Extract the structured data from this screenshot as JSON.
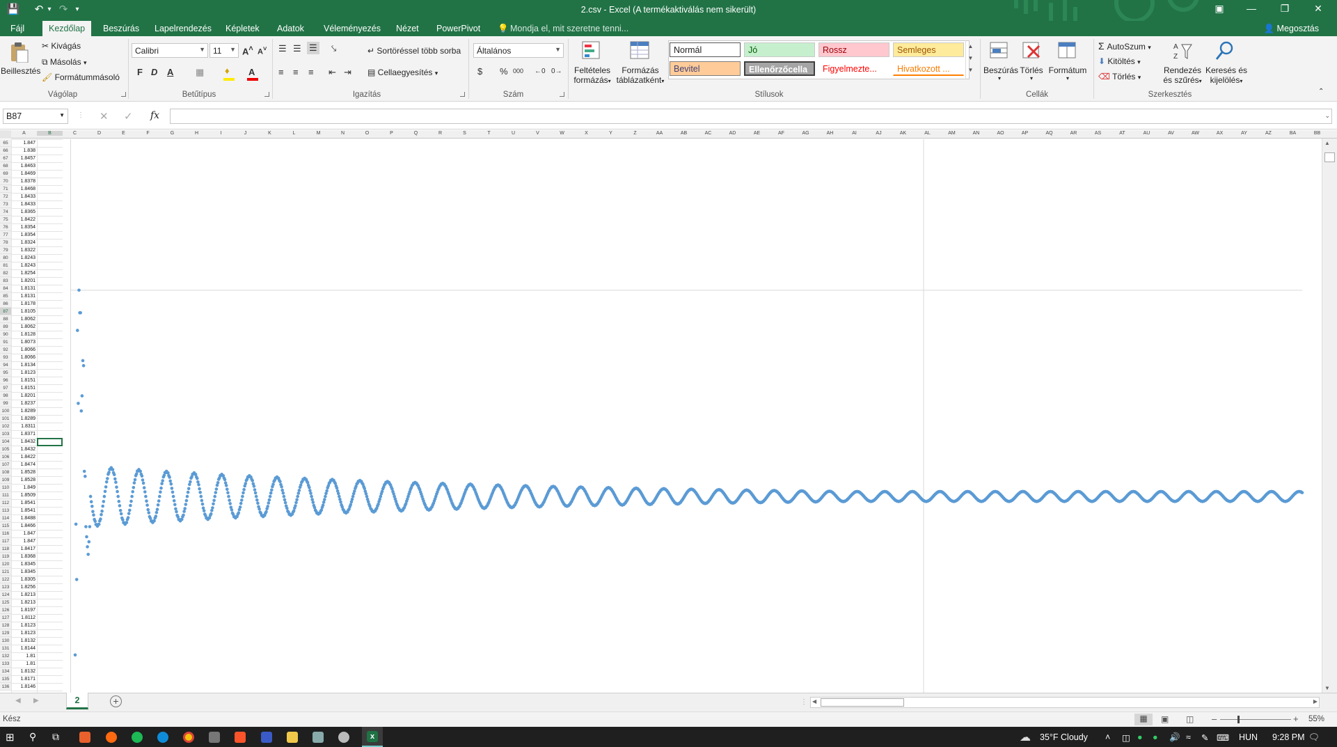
{
  "window": {
    "title": "2.csv - Excel (A termékaktiválás nem sikerült)",
    "share_label": "Megosztás",
    "tell_me": "Mondja el, mit szeretne tenni..."
  },
  "tabs": [
    "Fájl",
    "Kezdőlap",
    "Beszúrás",
    "Lapelrendezés",
    "Képletek",
    "Adatok",
    "Véleményezés",
    "Nézet",
    "PowerPivot"
  ],
  "active_tab": "Kezdőlap",
  "ribbon": {
    "clipboard": {
      "paste": "Beillesztés",
      "cut": "Kivágás",
      "copy": "Másolás",
      "format_painter": "Formátummásoló",
      "group": "Vágólap"
    },
    "font": {
      "name": "Calibri",
      "size": "11",
      "bold": "F",
      "italic": "D",
      "underline": "A",
      "group": "Betűtípus"
    },
    "alignment": {
      "wrap": "Sortöréssel több sorba",
      "merge": "Cellaegyesítés",
      "group": "Igazítás"
    },
    "number": {
      "format": "Általános",
      "currency": "$",
      "percent": "%",
      "thousands": "000",
      "group": "Szám"
    },
    "styles": {
      "conditional_1": "Feltételes",
      "conditional_2": "formázás",
      "table_1": "Formázás",
      "table_2": "táblázatként",
      "normal": "Normál",
      "good": "Jó",
      "bad": "Rossz",
      "neutral": "Semleges",
      "input": "Bevitel",
      "check": "Ellenőrzőcella",
      "warning": "Figyelmezte...",
      "linked": "Hivatkozott ...",
      "group": "Stílusok"
    },
    "cells": {
      "insert": "Beszúrás",
      "delete": "Törlés",
      "format": "Formátum",
      "group": "Cellák"
    },
    "editing": {
      "autosum": "AutoSzum",
      "fill": "Kitöltés",
      "clear": "Törlés",
      "sort_1": "Rendezés",
      "sort_2": "és szűrés",
      "find_1": "Keresés és",
      "find_2": "kijelölés",
      "group": "Szerkesztés"
    }
  },
  "formula_bar": {
    "name_box": "B87",
    "formula": "",
    "fx": "fx"
  },
  "column_headers": [
    "A",
    "B",
    "C",
    "D",
    "E",
    "F",
    "G",
    "H",
    "I",
    "J",
    "K",
    "L",
    "M",
    "N",
    "O",
    "P",
    "Q",
    "R",
    "S",
    "T",
    "U",
    "V",
    "W",
    "X",
    "Y",
    "Z",
    "AA",
    "AB",
    "AC",
    "AD",
    "AE",
    "AF",
    "AG",
    "AH",
    "AI",
    "AJ",
    "AK",
    "AL",
    "AM",
    "AN",
    "AO",
    "AP",
    "AQ",
    "AR",
    "AS",
    "AT",
    "AU",
    "AV",
    "AW",
    "AX",
    "AY",
    "AZ",
    "BA",
    "BB"
  ],
  "rows": [
    {
      "n": "65",
      "v": "1.847"
    },
    {
      "n": "66",
      "v": "1.838"
    },
    {
      "n": "67",
      "v": "1.8457"
    },
    {
      "n": "68",
      "v": "1.8463"
    },
    {
      "n": "69",
      "v": "1.8469"
    },
    {
      "n": "70",
      "v": "1.8378"
    },
    {
      "n": "71",
      "v": "1.8468"
    },
    {
      "n": "72",
      "v": "1.8433"
    },
    {
      "n": "73",
      "v": "1.8433"
    },
    {
      "n": "74",
      "v": "1.8365"
    },
    {
      "n": "75",
      "v": "1.8422"
    },
    {
      "n": "76",
      "v": "1.8354"
    },
    {
      "n": "77",
      "v": "1.8354"
    },
    {
      "n": "78",
      "v": "1.8324"
    },
    {
      "n": "79",
      "v": "1.8322"
    },
    {
      "n": "80",
      "v": "1.8243"
    },
    {
      "n": "81",
      "v": "1.8243"
    },
    {
      "n": "82",
      "v": "1.8254"
    },
    {
      "n": "83",
      "v": "1.8201"
    },
    {
      "n": "84",
      "v": "1.8131"
    },
    {
      "n": "85",
      "v": "1.8131"
    },
    {
      "n": "86",
      "v": "1.8178"
    },
    {
      "n": "87",
      "v": "1.8105"
    },
    {
      "n": "88",
      "v": "1.8062"
    },
    {
      "n": "89",
      "v": "1.8062"
    },
    {
      "n": "90",
      "v": "1.8128"
    },
    {
      "n": "91",
      "v": "1.8073"
    },
    {
      "n": "92",
      "v": "1.8066"
    },
    {
      "n": "93",
      "v": "1.8066"
    },
    {
      "n": "94",
      "v": "1.8134"
    },
    {
      "n": "95",
      "v": "1.8123"
    },
    {
      "n": "96",
      "v": "1.8151"
    },
    {
      "n": "97",
      "v": "1.8151"
    },
    {
      "n": "98",
      "v": "1.8201"
    },
    {
      "n": "99",
      "v": "1.8237"
    },
    {
      "n": "100",
      "v": "1.8289"
    },
    {
      "n": "101",
      "v": "1.8289"
    },
    {
      "n": "102",
      "v": "1.8311"
    },
    {
      "n": "103",
      "v": "1.8371"
    },
    {
      "n": "104",
      "v": "1.8432"
    },
    {
      "n": "105",
      "v": "1.8432"
    },
    {
      "n": "106",
      "v": "1.8422"
    },
    {
      "n": "107",
      "v": "1.8474"
    },
    {
      "n": "108",
      "v": "1.8528"
    },
    {
      "n": "109",
      "v": "1.8528"
    },
    {
      "n": "110",
      "v": "1.849"
    },
    {
      "n": "111",
      "v": "1.8509"
    },
    {
      "n": "112",
      "v": "1.8541"
    },
    {
      "n": "113",
      "v": "1.8541"
    },
    {
      "n": "114",
      "v": "1.8488"
    },
    {
      "n": "115",
      "v": "1.8466"
    },
    {
      "n": "116",
      "v": "1.847"
    },
    {
      "n": "117",
      "v": "1.847"
    },
    {
      "n": "118",
      "v": "1.8417"
    },
    {
      "n": "119",
      "v": "1.8368"
    },
    {
      "n": "120",
      "v": "1.8345"
    },
    {
      "n": "121",
      "v": "1.8345"
    },
    {
      "n": "122",
      "v": "1.8305"
    },
    {
      "n": "123",
      "v": "1.8256"
    },
    {
      "n": "124",
      "v": "1.8213"
    },
    {
      "n": "125",
      "v": "1.8213"
    },
    {
      "n": "126",
      "v": "1.8197"
    },
    {
      "n": "127",
      "v": "1.8112"
    },
    {
      "n": "128",
      "v": "1.8123"
    },
    {
      "n": "129",
      "v": "1.8123"
    },
    {
      "n": "130",
      "v": "1.8132"
    },
    {
      "n": "131",
      "v": "1.8144"
    },
    {
      "n": "132",
      "v": "1.81"
    },
    {
      "n": "133",
      "v": "1.81"
    },
    {
      "n": "134",
      "v": "1.8132"
    },
    {
      "n": "135",
      "v": "1.8171"
    },
    {
      "n": "136",
      "v": "1.8146"
    }
  ],
  "chart_data": {
    "type": "scatter",
    "y_axis_tick": "2",
    "color": "#5b9bd5",
    "early_points": [
      {
        "i": 1,
        "y": 0.55
      },
      {
        "i": 2,
        "y": 1.07
      },
      {
        "i": 3,
        "y": 0.85
      },
      {
        "i": 4,
        "y": 1.84
      },
      {
        "i": 5,
        "y": 1.55
      },
      {
        "i": 6,
        "y": 2.0
      },
      {
        "i": 7,
        "y": 1.91
      },
      {
        "i": 8,
        "y": 1.91
      },
      {
        "i": 9,
        "y": 1.52
      },
      {
        "i": 10,
        "y": 1.58
      },
      {
        "i": 11,
        "y": 1.72
      },
      {
        "i": 12,
        "y": 1.7
      },
      {
        "i": 13,
        "y": 1.28
      },
      {
        "i": 14,
        "y": 1.26
      },
      {
        "i": 15,
        "y": 1.06
      },
      {
        "i": 16,
        "y": 1.02
      },
      {
        "i": 17,
        "y": 0.98
      },
      {
        "i": 18,
        "y": 0.95
      },
      {
        "i": 19,
        "y": 1.0
      },
      {
        "i": 20,
        "y": 1.06
      }
    ],
    "n_total": 1600,
    "settle_level": 1.18,
    "oscillation": {
      "initial_amp": 0.12,
      "decay_per_point": 0.0018,
      "min_amp": 0.02,
      "period_points": 36
    }
  },
  "sheet": {
    "tab_name": "2",
    "add_sheet": "+"
  },
  "status": {
    "ready": "Kész",
    "zoom": "55%"
  },
  "taskbar": {
    "weather": "35°F  Cloudy",
    "lang": "HUN",
    "time": "9:28 PM"
  }
}
